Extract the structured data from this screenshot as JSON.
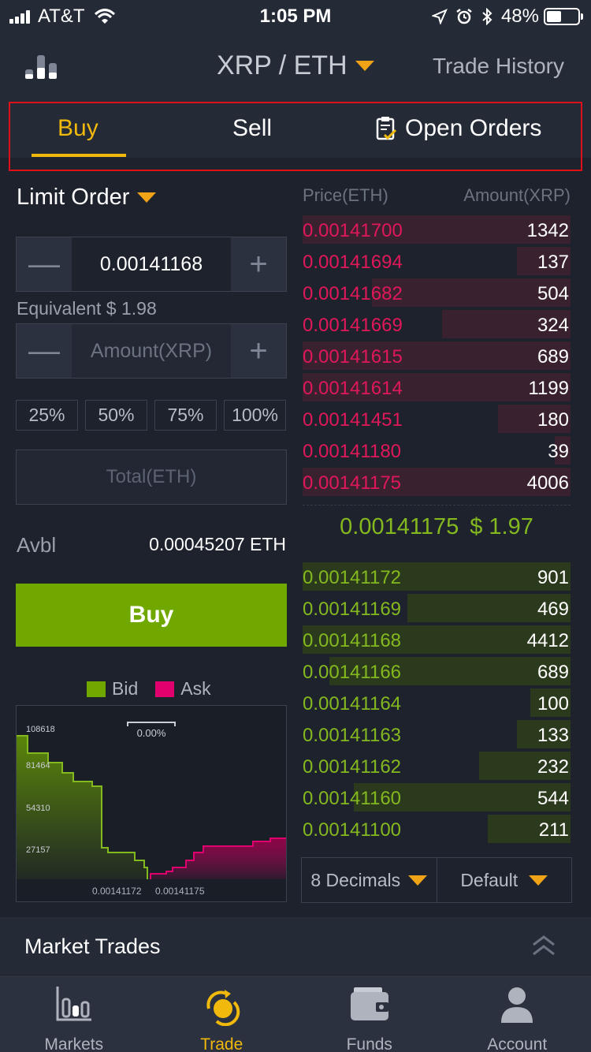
{
  "status_bar": {
    "carrier": "AT&T",
    "time": "1:05 PM",
    "battery": "48%"
  },
  "header": {
    "pair": "XRP / ETH",
    "trade_history": "Trade History"
  },
  "tabs": [
    {
      "label": "Buy",
      "active": true
    },
    {
      "label": "Sell",
      "active": false
    },
    {
      "label": "Open Orders",
      "active": false
    }
  ],
  "order_form": {
    "order_type": "Limit Order",
    "price_value": "0.00141168",
    "equivalent": "Equivalent $ 1.98",
    "amount_placeholder": "Amount(XRP)",
    "percent_buttons": [
      "25%",
      "50%",
      "75%",
      "100%"
    ],
    "total_placeholder": "Total(ETH)",
    "avbl_label": "Avbl",
    "avbl_value": "0.00045207 ETH",
    "buy_label": "Buy"
  },
  "depth_chart": {
    "legend": {
      "bid": "Bid",
      "ask": "Ask"
    },
    "spread": "0.00%",
    "y_ticks": [
      "108618",
      "81464",
      "54310",
      "27157"
    ],
    "x_labels": [
      "0.00141172",
      "0.00141175"
    ],
    "colors": {
      "bid": "#70a800",
      "ask": "#e0006e"
    }
  },
  "order_book": {
    "price_header": "Price(ETH)",
    "amount_header": "Amount(XRP)",
    "asks": [
      {
        "price": "0.00141700",
        "amount": "1342",
        "depth": 1.0
      },
      {
        "price": "0.00141694",
        "amount": "137",
        "depth": 0.2
      },
      {
        "price": "0.00141682",
        "amount": "504",
        "depth": 0.74
      },
      {
        "price": "0.00141669",
        "amount": "324",
        "depth": 0.48
      },
      {
        "price": "0.00141615",
        "amount": "689",
        "depth": 1.0
      },
      {
        "price": "0.00141614",
        "amount": "1199",
        "depth": 1.0
      },
      {
        "price": "0.00141451",
        "amount": "180",
        "depth": 0.27
      },
      {
        "price": "0.00141180",
        "amount": "39",
        "depth": 0.06
      },
      {
        "price": "0.00141175",
        "amount": "4006",
        "depth": 1.0
      }
    ],
    "last_price": "0.00141175",
    "last_usd": "$ 1.97",
    "bids": [
      {
        "price": "0.00141172",
        "amount": "901",
        "depth": 1.0
      },
      {
        "price": "0.00141169",
        "amount": "469",
        "depth": 0.61
      },
      {
        "price": "0.00141168",
        "amount": "4412",
        "depth": 1.0
      },
      {
        "price": "0.00141166",
        "amount": "689",
        "depth": 0.9
      },
      {
        "price": "0.00141164",
        "amount": "100",
        "depth": 0.15
      },
      {
        "price": "0.00141163",
        "amount": "133",
        "depth": 0.2
      },
      {
        "price": "0.00141162",
        "amount": "232",
        "depth": 0.34
      },
      {
        "price": "0.00141160",
        "amount": "544",
        "depth": 0.81
      },
      {
        "price": "0.00141100",
        "amount": "211",
        "depth": 0.31
      }
    ],
    "decimals": "8 Decimals",
    "view_mode": "Default"
  },
  "market_trades": {
    "title": "Market Trades"
  },
  "tab_bar": [
    {
      "label": "Markets",
      "icon": "markets-icon",
      "active": false
    },
    {
      "label": "Trade",
      "icon": "trade-icon",
      "active": true
    },
    {
      "label": "Funds",
      "icon": "wallet-icon",
      "active": false
    },
    {
      "label": "Account",
      "icon": "account-icon",
      "active": false
    }
  ]
}
